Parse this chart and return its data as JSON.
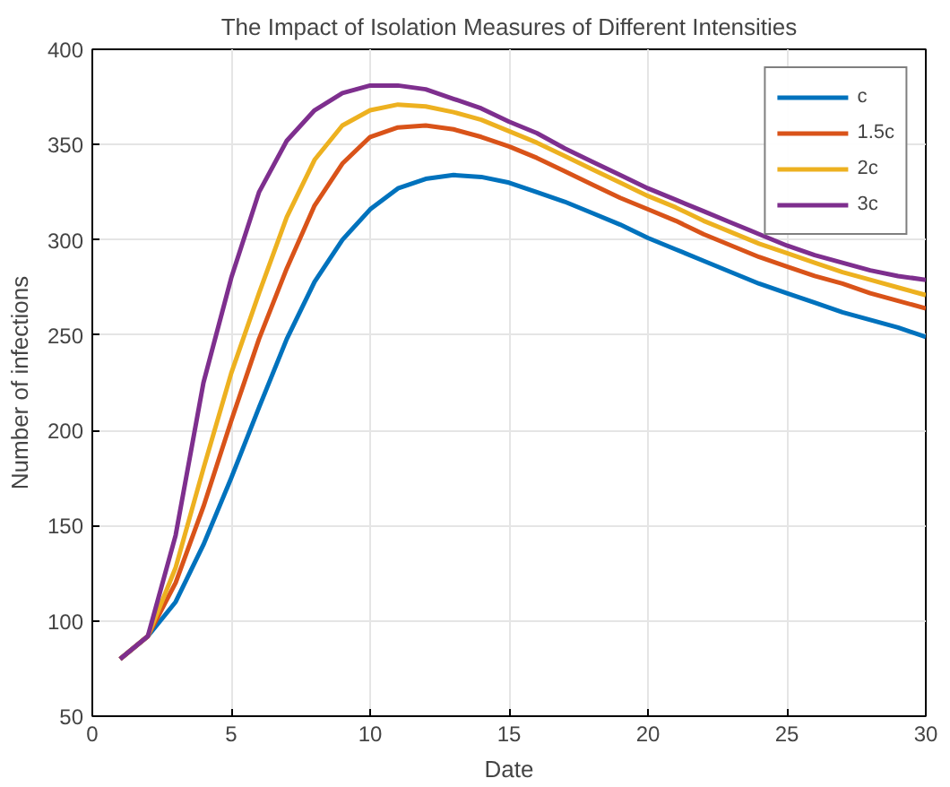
{
  "chart_data": {
    "type": "line",
    "title": "The Impact of Isolation Measures of Different Intensities",
    "xlabel": "Date",
    "ylabel": "Number of infections",
    "x": [
      1,
      2,
      3,
      4,
      5,
      6,
      7,
      8,
      9,
      10,
      11,
      12,
      13,
      14,
      15,
      16,
      17,
      18,
      19,
      20,
      21,
      22,
      23,
      24,
      25,
      26,
      27,
      28,
      29,
      30
    ],
    "series": [
      {
        "name": "c",
        "color": "#0072bd",
        "values": [
          80,
          92,
          110,
          140,
          175,
          212,
          248,
          278,
          300,
          316,
          327,
          332,
          334,
          333,
          330,
          325,
          320,
          314,
          308,
          301,
          295,
          289,
          283,
          277,
          272,
          267,
          262,
          258,
          254,
          249
        ]
      },
      {
        "name": "1.5c",
        "color": "#d95319",
        "values": [
          80,
          92,
          120,
          160,
          205,
          248,
          285,
          318,
          340,
          354,
          359,
          360,
          358,
          354,
          349,
          343,
          336,
          329,
          322,
          316,
          310,
          303,
          297,
          291,
          286,
          281,
          277,
          272,
          268,
          264
        ]
      },
      {
        "name": "2c",
        "color": "#edb120",
        "values": [
          80,
          92,
          128,
          180,
          230,
          272,
          312,
          342,
          360,
          368,
          371,
          370,
          367,
          363,
          357,
          351,
          344,
          337,
          330,
          323,
          317,
          310,
          304,
          298,
          293,
          288,
          283,
          279,
          275,
          271
        ]
      },
      {
        "name": "3c",
        "color": "#7e2f8e",
        "values": [
          80,
          92,
          145,
          225,
          280,
          325,
          352,
          368,
          377,
          381,
          381,
          379,
          374,
          369,
          362,
          356,
          348,
          341,
          334,
          327,
          321,
          315,
          309,
          303,
          297,
          292,
          288,
          284,
          281,
          279
        ]
      }
    ],
    "xlim": [
      0,
      30
    ],
    "ylim": [
      50,
      400
    ],
    "xticks": [
      0,
      5,
      10,
      15,
      20,
      25,
      30
    ],
    "yticks": [
      50,
      100,
      150,
      200,
      250,
      300,
      350,
      400
    ],
    "grid": true,
    "legend": "top right",
    "marker": "none",
    "line_style": "solid"
  }
}
